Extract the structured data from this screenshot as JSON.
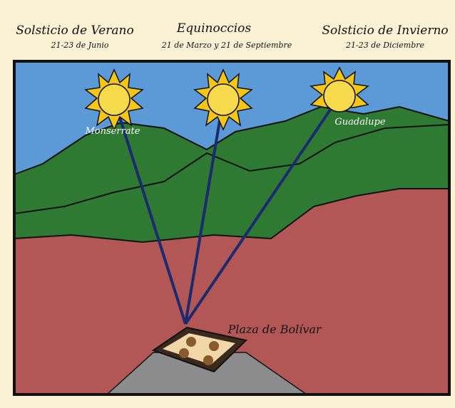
{
  "header": {
    "columns": [
      {
        "title": "Solsticio de Verano",
        "dates": "21-23 de Junio"
      },
      {
        "title": "Equinoccios",
        "dates": "21 de Marzo y 21 de Septiembre"
      },
      {
        "title": "Solsticio de Invierno",
        "dates": "21-23 de Diciembre"
      }
    ]
  },
  "labels": {
    "monserrate": "Monserrate",
    "guadalupe": "Guadalupe",
    "plaza": "Plaza de Bolívar"
  }
}
